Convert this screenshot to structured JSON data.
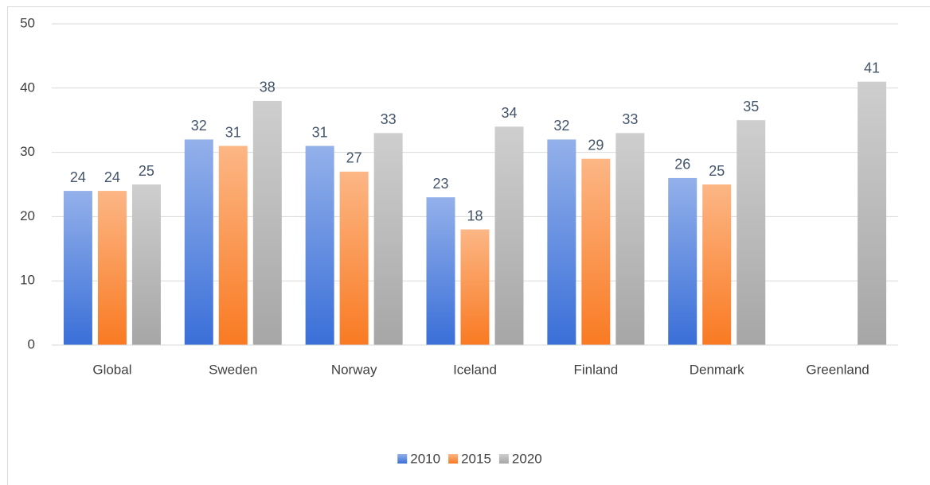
{
  "chart_data": {
    "type": "bar",
    "categories": [
      "Global",
      "Sweden",
      "Norway",
      "Iceland",
      "Finland",
      "Denmark",
      "Greenland"
    ],
    "series": [
      {
        "name": "2010",
        "color": "#3a6fd8",
        "values": [
          24,
          32,
          31,
          23,
          32,
          26,
          null
        ]
      },
      {
        "name": "2015",
        "color": "#f97a22",
        "values": [
          24,
          31,
          27,
          18,
          29,
          25,
          null
        ]
      },
      {
        "name": "2020",
        "color": "#a6a6a6",
        "values": [
          25,
          38,
          33,
          34,
          33,
          35,
          41
        ]
      }
    ],
    "ylim": [
      0,
      50
    ],
    "yticks": [
      0,
      10,
      20,
      30,
      40,
      50
    ],
    "grid": true,
    "legend": "bottom"
  }
}
